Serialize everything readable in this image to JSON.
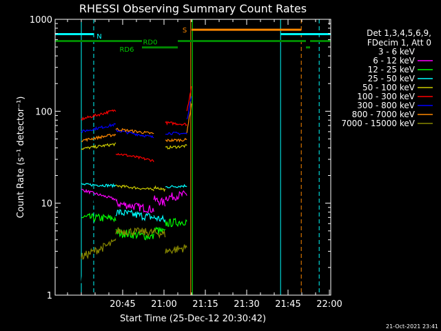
{
  "chart_data": {
    "type": "line",
    "title": "RHESSI Observing Summary Count Rates",
    "xlabel": "Start Time (25-Dec-12 20:30:42)",
    "ylabel": "Count Rate (s⁻¹ detector⁻¹)",
    "yscale": "log",
    "ylim": [
      1,
      1000
    ],
    "xlim_minutes": [
      20.5,
      120.5
    ],
    "ytick_labels": [
      {
        "value": 1,
        "label": "1"
      },
      {
        "value": 10,
        "label": "10"
      },
      {
        "value": 100,
        "label": "100"
      },
      {
        "value": 1000,
        "label": "1000"
      }
    ],
    "xtick_labels": [
      {
        "minute": 45,
        "label": "20:45"
      },
      {
        "minute": 60,
        "label": "21:00"
      },
      {
        "minute": 75,
        "label": "21:15"
      },
      {
        "minute": 90,
        "label": "21:30"
      },
      {
        "minute": 105,
        "label": "21:45"
      },
      {
        "minute": 120,
        "label": "22:00"
      }
    ],
    "legend": {
      "placement": "right",
      "header": [
        "Det 1,3,4,5,6,9,",
        "FDecim 1, Att 0"
      ]
    },
    "series": [
      {
        "name": "3 - 6 keV",
        "color": "#000000",
        "segments": [
          {
            "x0": 30.0,
            "x1": 31.8,
            "y0": 1.5,
            "y1": 1.5
          },
          {
            "x0": 31.8,
            "x1": 42.5,
            "y0": 11,
            "y1": 10
          },
          {
            "x0": 42.5,
            "x1": 56.3,
            "y0": 5.0,
            "y1": 4.2
          },
          {
            "x0": 56.3,
            "x1": 60.4,
            "y0": 5.5,
            "y1": 4.0
          },
          {
            "x0": 60.5,
            "x1": 68.3,
            "y0": 6.5,
            "y1": 5.6
          }
        ]
      },
      {
        "name": "6 - 12 keV",
        "color": "#ff00ff",
        "segments": [
          {
            "x0": 30.0,
            "x1": 42.5,
            "y0": 14,
            "y1": 11
          },
          {
            "x0": 42.5,
            "x1": 56.3,
            "y0": 10,
            "y1": 8.5
          },
          {
            "x0": 56.3,
            "x1": 60.4,
            "y0": 11,
            "y1": 10
          },
          {
            "x0": 60.5,
            "x1": 68.3,
            "y0": 11.5,
            "y1": 12.5
          }
        ]
      },
      {
        "name": "12 - 25 keV",
        "color": "#00ff00",
        "segments": [
          {
            "x0": 30.0,
            "x1": 42.5,
            "y0": 7.0,
            "y1": 6.8
          },
          {
            "x0": 42.5,
            "x1": 56.3,
            "y0": 4.8,
            "y1": 4.3
          },
          {
            "x0": 56.3,
            "x1": 60.4,
            "y0": 5.2,
            "y1": 4.8
          },
          {
            "x0": 60.5,
            "x1": 68.3,
            "y0": 6.0,
            "y1": 6.4
          }
        ]
      },
      {
        "name": "25 - 50 keV",
        "color": "#00ffff",
        "segments": [
          {
            "x0": 30.0,
            "x1": 42.5,
            "y0": 16,
            "y1": 15.5
          },
          {
            "x0": 42.5,
            "x1": 56.3,
            "y0": 8.0,
            "y1": 7.0
          },
          {
            "x0": 56.3,
            "x1": 60.4,
            "y0": 7.0,
            "y1": 6.5
          },
          {
            "x0": 60.5,
            "x1": 68.3,
            "y0": 15,
            "y1": 15.5
          }
        ]
      },
      {
        "name": "50 - 100 keV",
        "color": "#cccc00",
        "segments": [
          {
            "x0": 30.0,
            "x1": 42.5,
            "y0": 39,
            "y1": 44
          },
          {
            "x0": 42.5,
            "x1": 56.3,
            "y0": 15.5,
            "y1": 14
          },
          {
            "x0": 56.3,
            "x1": 60.4,
            "y0": 15,
            "y1": 14
          },
          {
            "x0": 60.5,
            "x1": 68.3,
            "y0": 40,
            "y1": 42
          }
        ]
      },
      {
        "name": "100 - 300 keV",
        "color": "#ff0000",
        "segments": [
          {
            "x0": 30.0,
            "x1": 42.5,
            "y0": 82,
            "y1": 103
          },
          {
            "x0": 42.5,
            "x1": 56.3,
            "y0": 35,
            "y1": 29
          },
          {
            "x0": 60.5,
            "x1": 68.3,
            "y0": 75,
            "y1": 72
          },
          {
            "x0": 68.3,
            "x1": 70.0,
            "y0": 100,
            "y1": 190
          }
        ]
      },
      {
        "name": "300 - 800 keV",
        "color": "#0000ff",
        "segments": [
          {
            "x0": 30.0,
            "x1": 42.5,
            "y0": 60,
            "y1": 72
          },
          {
            "x0": 42.5,
            "x1": 56.3,
            "y0": 62,
            "y1": 52
          },
          {
            "x0": 60.5,
            "x1": 68.3,
            "y0": 58,
            "y1": 57
          },
          {
            "x0": 68.3,
            "x1": 70.0,
            "y0": 80,
            "y1": 150
          }
        ]
      },
      {
        "name": "800 - 7000 keV",
        "color": "#ff8800",
        "segments": [
          {
            "x0": 30.0,
            "x1": 42.5,
            "y0": 48,
            "y1": 56
          },
          {
            "x0": 42.5,
            "x1": 56.3,
            "y0": 64,
            "y1": 57
          },
          {
            "x0": 60.5,
            "x1": 68.3,
            "y0": 48,
            "y1": 49
          },
          {
            "x0": 68.3,
            "x1": 70.0,
            "y0": 60,
            "y1": 120
          }
        ]
      },
      {
        "name": "7000 - 15000 keV",
        "color": "#888800",
        "segments": [
          {
            "x0": 30.0,
            "x1": 42.5,
            "y0": 2.6,
            "y1": 3.8
          },
          {
            "x0": 42.5,
            "x1": 56.3,
            "y0": 5.0,
            "y1": 4.8
          },
          {
            "x0": 56.3,
            "x1": 60.4,
            "y0": 4.8,
            "y1": 4.6
          },
          {
            "x0": 60.5,
            "x1": 68.3,
            "y0": 3.0,
            "y1": 3.3
          }
        ]
      }
    ],
    "annotations": {
      "vlines": [
        {
          "minute": 30.0,
          "style": "solid",
          "color": "#00ffff"
        },
        {
          "minute": 34.5,
          "style": "dashed",
          "color": "#00ffff"
        },
        {
          "minute": 69.7,
          "style": "solid",
          "color": "#ff8800"
        },
        {
          "minute": 70.3,
          "style": "solid",
          "color": "#00ff00"
        },
        {
          "minute": 102.3,
          "style": "solid",
          "color": "#00ffff"
        },
        {
          "minute": 109.8,
          "style": "dashed",
          "color": "#ff8800"
        },
        {
          "minute": 116.3,
          "style": "dashed",
          "color": "#00ffff"
        }
      ],
      "bars": [
        {
          "label": "N",
          "color": "#00ffff",
          "y": 690,
          "ranges": [
            [
              20.5,
              34.5
            ],
            [
              102.3,
              120.5
            ]
          ]
        },
        {
          "label": "S",
          "color": "#ff8800",
          "y": 770,
          "ranges": [
            [
              70.0,
              109.8
            ]
          ]
        },
        {
          "label": "RD0",
          "color": "#008800",
          "y": 580,
          "ranges": [
            [
              20.5,
              52.0
            ],
            [
              65.0,
              111.5
            ],
            [
              113.0,
              120.5
            ]
          ]
        },
        {
          "label": "RD6",
          "color": "#008800",
          "y": 495,
          "ranges": [
            [
              52.0,
              65.0
            ],
            [
              111.5,
              113.0
            ]
          ]
        }
      ],
      "bar_labels": [
        {
          "text": "N",
          "minute": 36.5,
          "y": 660,
          "color": "#00ffff"
        },
        {
          "text": "S",
          "minute": 67.5,
          "y": 770,
          "color": "#ff8800"
        },
        {
          "text": "RD0",
          "minute": 55.0,
          "y": 570,
          "color": "#00cc00"
        },
        {
          "text": "RD6",
          "minute": 46.5,
          "y": 475,
          "color": "#00cc00"
        }
      ]
    },
    "footer_date": "21-Oct-2021 23:41"
  }
}
